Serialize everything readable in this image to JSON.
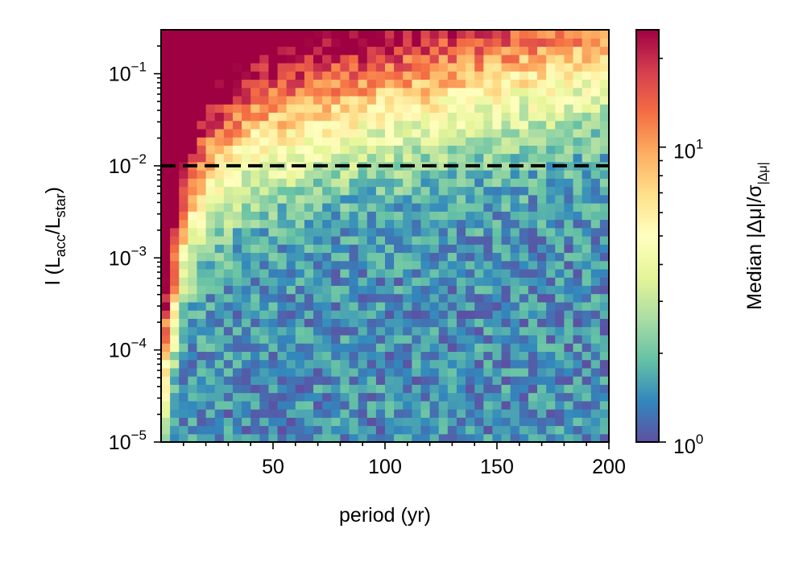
{
  "chart_data": {
    "type": "heatmap",
    "title": "",
    "xlabel": "period (yr)",
    "ylabel": "l (L_acc/L_star)",
    "xlim": [
      0,
      200
    ],
    "ylim": [
      1e-05,
      0.3
    ],
    "y_scale": "log",
    "x_ticks": [
      {
        "value": 50,
        "label": "50"
      },
      {
        "value": 100,
        "label": "100"
      },
      {
        "value": 150,
        "label": "150"
      },
      {
        "value": 200,
        "label": "200"
      }
    ],
    "y_ticks": [
      {
        "value": 1e-05,
        "base": "10",
        "exp": "−5"
      },
      {
        "value": 0.0001,
        "base": "10",
        "exp": "−4"
      },
      {
        "value": 0.001,
        "base": "10",
        "exp": "−3"
      },
      {
        "value": 0.01,
        "base": "10",
        "exp": "−2"
      },
      {
        "value": 0.1,
        "base": "10",
        "exp": "−1"
      }
    ],
    "colorbar": {
      "label": "Median |Δμ|/σ_|Δμ|",
      "scale": "log",
      "colormap": "Spectral_r",
      "range": [
        1,
        25
      ],
      "ticks": [
        {
          "value": 1,
          "base": "10",
          "exp": "0"
        },
        {
          "value": 10,
          "base": "10",
          "exp": "1"
        }
      ]
    },
    "reference_line": {
      "y": 0.01,
      "style": "dashed",
      "color": "#000000"
    },
    "grid": false,
    "bins": {
      "nx": 50,
      "ny": 50
    },
    "trend": "Median |Δμ|/σ is highest (~20+) at short periods and high l; it falls to ~1 as period increases and l decreases. The transition boundary moves to higher l with longer period: roughly l≈3e-5 at period≈2 yr, l≈3e-3 at 20 yr, l≈2e-2 at 100 yr, l≈6e-2 at 200 yr."
  },
  "colors": {
    "spectral_r": [
      "#5e4fa2",
      "#3288bd",
      "#66c2a5",
      "#abdda4",
      "#e6f598",
      "#ffffbf",
      "#fee08b",
      "#fdae61",
      "#f46d43",
      "#d53e4f",
      "#9e0142"
    ],
    "dashed_line": "#000000"
  }
}
